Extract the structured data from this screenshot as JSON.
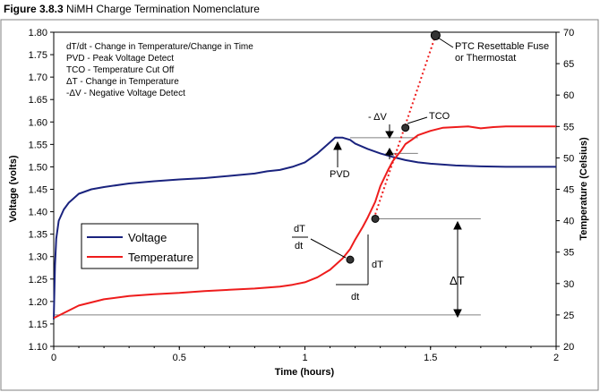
{
  "figure": {
    "number": "Figure 3.8.3",
    "title": "NiMH Charge Termination Nomenclature"
  },
  "chart_data": {
    "type": "line",
    "xlabel": "Time (hours)",
    "ylabel": "Voltage (volts)",
    "y2label": "Temperature (Celsius)",
    "xlim": [
      0,
      2
    ],
    "ylim": [
      1.1,
      1.8
    ],
    "y2lim": [
      20,
      70
    ],
    "x_ticks": [
      "0",
      "0.5",
      "1",
      "1.5",
      "2"
    ],
    "y_ticks": [
      "1.10",
      "1.15",
      "1.20",
      "1.25",
      "1.30",
      "1.35",
      "1.40",
      "1.45",
      "1.50",
      "1.55",
      "1.60",
      "1.65",
      "1.70",
      "1.75",
      "1.80"
    ],
    "y2_ticks": [
      "20",
      "25",
      "30",
      "35",
      "40",
      "45",
      "50",
      "55",
      "60",
      "65",
      "70"
    ],
    "grid": false,
    "legend_position": "left-middle",
    "series": [
      {
        "name": "Voltage",
        "axis": "left",
        "color": "#1a237e",
        "x": [
          0,
          0.005,
          0.01,
          0.02,
          0.04,
          0.06,
          0.08,
          0.1,
          0.15,
          0.2,
          0.3,
          0.4,
          0.5,
          0.6,
          0.7,
          0.8,
          0.85,
          0.9,
          0.95,
          1.0,
          1.05,
          1.1,
          1.12,
          1.15,
          1.18,
          1.2,
          1.25,
          1.3,
          1.35,
          1.4,
          1.45,
          1.5,
          1.55,
          1.6,
          1.7,
          1.8,
          1.9,
          2.0
        ],
        "y": [
          1.16,
          1.28,
          1.34,
          1.38,
          1.405,
          1.42,
          1.43,
          1.44,
          1.45,
          1.455,
          1.463,
          1.468,
          1.472,
          1.475,
          1.48,
          1.485,
          1.49,
          1.493,
          1.5,
          1.51,
          1.53,
          1.555,
          1.565,
          1.565,
          1.56,
          1.552,
          1.54,
          1.53,
          1.522,
          1.515,
          1.51,
          1.507,
          1.505,
          1.503,
          1.501,
          1.5,
          1.5,
          1.5
        ]
      },
      {
        "name": "Temperature",
        "axis": "right",
        "color": "#ee1c1c",
        "x": [
          0,
          0.05,
          0.1,
          0.2,
          0.3,
          0.4,
          0.5,
          0.6,
          0.7,
          0.8,
          0.9,
          0.95,
          1.0,
          1.05,
          1.1,
          1.15,
          1.18,
          1.2,
          1.23,
          1.25,
          1.28,
          1.3,
          1.33,
          1.35,
          1.38,
          1.4,
          1.43,
          1.45,
          1.5,
          1.55,
          1.6,
          1.65,
          1.7,
          1.75,
          1.8,
          1.85,
          1.9,
          1.95,
          2.0
        ],
        "y": [
          24.5,
          25.5,
          26.5,
          27.5,
          28.0,
          28.3,
          28.5,
          28.8,
          29.0,
          29.2,
          29.5,
          29.8,
          30.2,
          31.0,
          32.2,
          34.0,
          35.5,
          37.0,
          39.0,
          40.5,
          43.0,
          45.5,
          48.0,
          49.5,
          51.0,
          52.2,
          53.0,
          53.6,
          54.3,
          54.8,
          54.9,
          55.0,
          54.7,
          54.9,
          55.0,
          55.0,
          55.0,
          55.0,
          55.0
        ]
      }
    ],
    "extrapolation": {
      "style": "dotted",
      "color": "#ee1c1c",
      "x": [
        1.28,
        1.52
      ],
      "y2": [
        41.0,
        69.5
      ]
    },
    "markers": [
      {
        "label": "PTC Resettable Fuse or Thermostat",
        "x": 1.52,
        "y2": 69.5
      },
      {
        "label": "TCO",
        "x": 1.4,
        "y2": 54.8
      },
      {
        "label": "dT/dt point",
        "x": 1.18,
        "y2": 33.8
      },
      {
        "label": "ΔT end",
        "x": 1.28,
        "y2": 40.3
      }
    ],
    "annotations": {
      "definitions": [
        "dT/dt - Change in Temperature/Change in Time",
        "PVD - Peak Voltage Detect",
        "TCO - Temperature Cut Off",
        "ΔT - Change in Temperature",
        "-ΔV - Negative Voltage Detect"
      ],
      "ptc_lines": [
        "PTC Resettable Fuse",
        "or Thermostat"
      ],
      "tco": "TCO",
      "pvd": "PVD",
      "neg_dv": "- ΔV",
      "dt_num": "dT",
      "dt_den": "dt",
      "dT_label": "dT",
      "dt_label": "dt",
      "deltaT": "ΔT"
    }
  }
}
